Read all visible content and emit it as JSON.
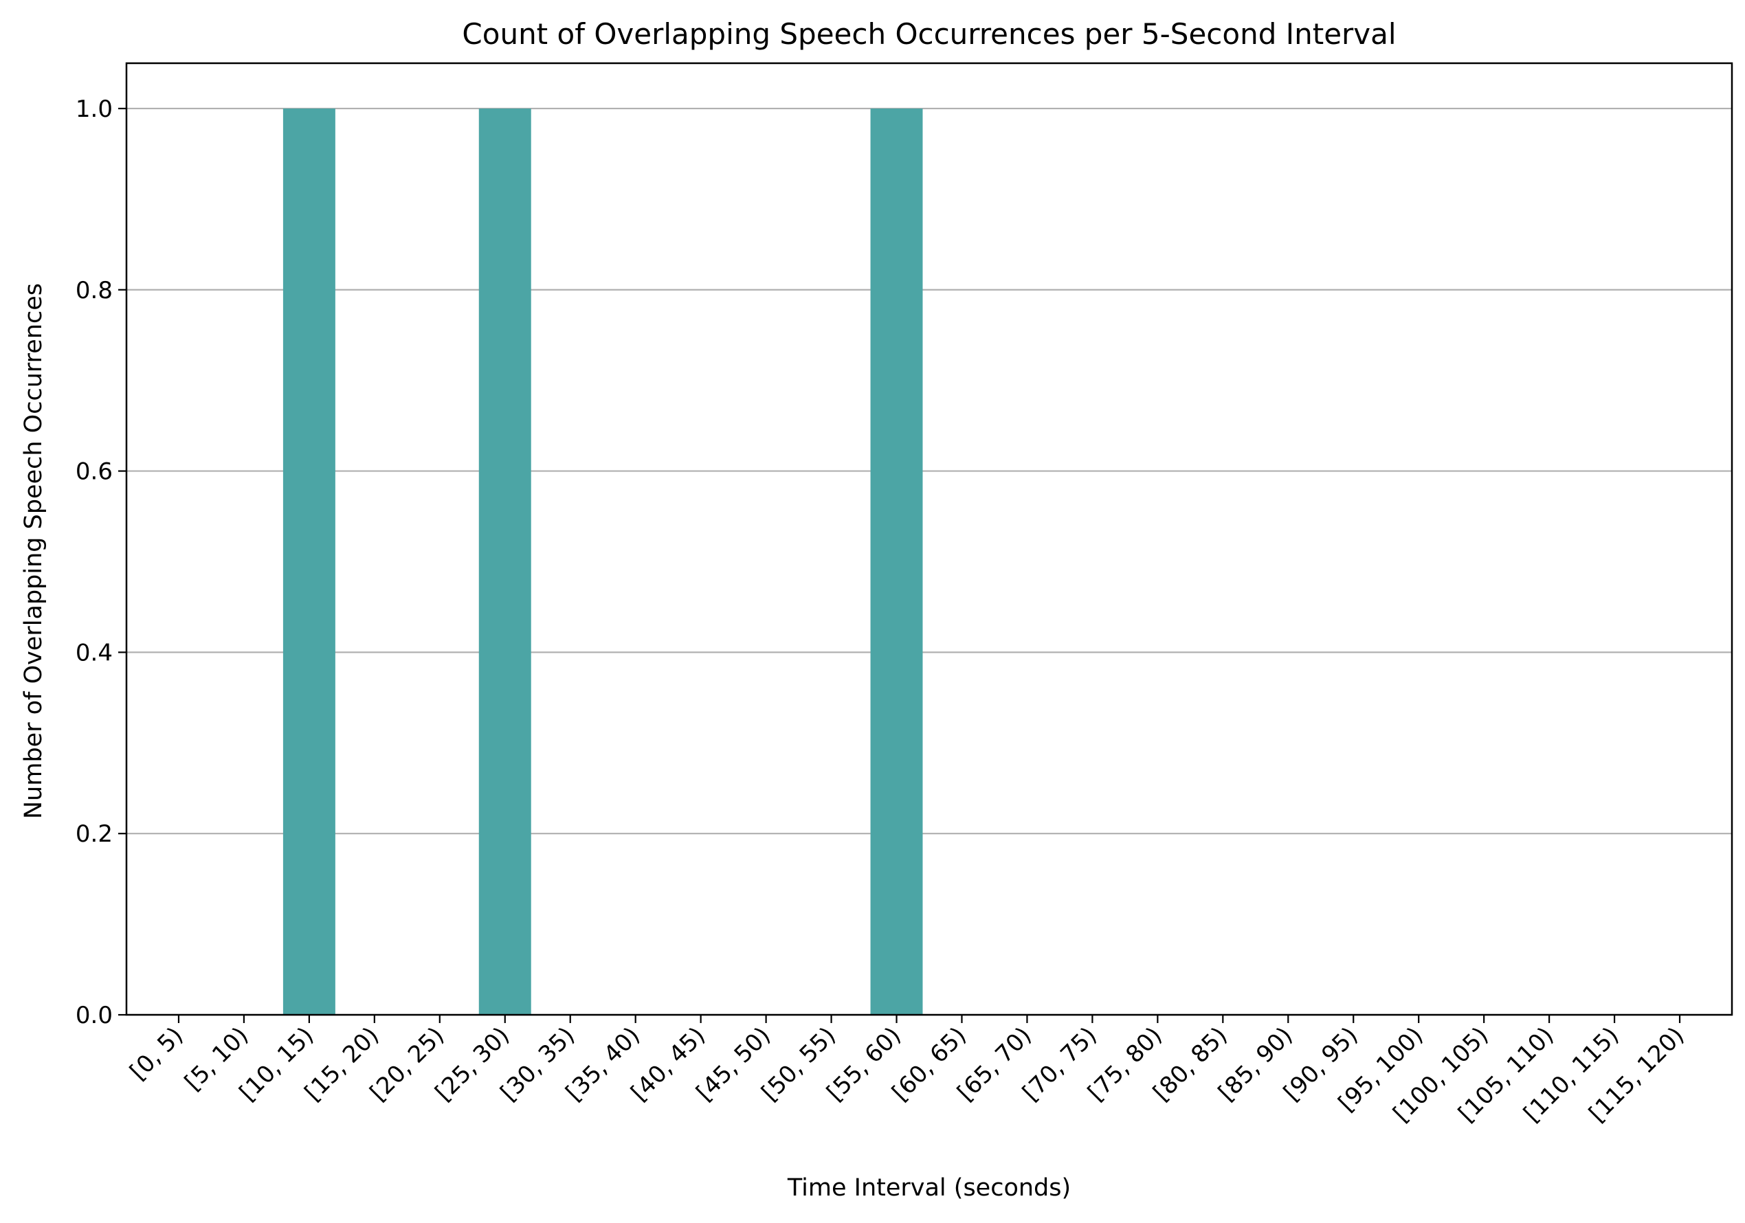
{
  "chart_data": {
    "type": "bar",
    "title": "Count of Overlapping Speech Occurrences per 5-Second Interval",
    "xlabel": "Time Interval (seconds)",
    "ylabel": "Number of Overlapping Speech Occurrences",
    "categories": [
      "[0, 5)",
      "[5, 10)",
      "[10, 15)",
      "[15, 20)",
      "[20, 25)",
      "[25, 30)",
      "[30, 35)",
      "[35, 40)",
      "[40, 45)",
      "[45, 50)",
      "[50, 55)",
      "[55, 60)",
      "[60, 65)",
      "[65, 70)",
      "[70, 75)",
      "[75, 80)",
      "[80, 85)",
      "[85, 90)",
      "[90, 95)",
      "[95, 100)",
      "[100, 105)",
      "[105, 110)",
      "[110, 115)",
      "[115, 120)"
    ],
    "values": [
      0,
      0,
      1,
      0,
      0,
      1,
      0,
      0,
      0,
      0,
      0,
      1,
      0,
      0,
      0,
      0,
      0,
      0,
      0,
      0,
      0,
      0,
      0,
      0
    ],
    "ylim": [
      0,
      1.05
    ],
    "yticks": [
      0.0,
      0.2,
      0.4,
      0.6,
      0.8,
      1.0
    ],
    "ytick_labels": [
      "0.0",
      "0.2",
      "0.4",
      "0.6",
      "0.8",
      "1.0"
    ],
    "grid": "y",
    "legend": "none",
    "bar_color": "#4ca5a5",
    "grid_color": "#b0b0b0"
  }
}
